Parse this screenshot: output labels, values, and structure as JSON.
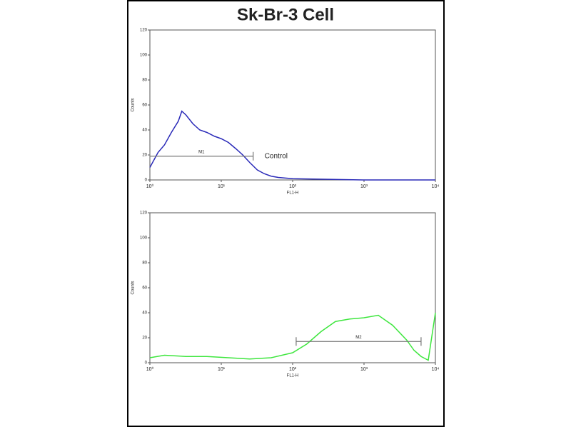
{
  "title": "Sk-Br-3 Cell",
  "chart_data": [
    {
      "type": "line",
      "xlabel": "FL1-H",
      "ylabel": "Counts",
      "xscale": "log",
      "xlim": [
        1,
        10000
      ],
      "ylim": [
        0,
        120
      ],
      "xticks": [
        {
          "value": 1,
          "label": "10⁰"
        },
        {
          "value": 10,
          "label": "10¹"
        },
        {
          "value": 100,
          "label": "10²"
        },
        {
          "value": 1000,
          "label": "10³"
        },
        {
          "value": 10000,
          "label": "10⁴"
        }
      ],
      "yticks": [
        0,
        20,
        40,
        60,
        80,
        100,
        120
      ],
      "series": [
        {
          "color": "#2a2ab8",
          "x": [
            1,
            1.3,
            1.6,
            2,
            2.5,
            2.8,
            3.2,
            4,
            5,
            6.3,
            8,
            10,
            12.6,
            16,
            20,
            25,
            32,
            40,
            50,
            63,
            100,
            316,
            1000,
            10000
          ],
          "values": [
            10,
            22,
            28,
            38,
            47,
            55,
            52,
            45,
            40,
            38,
            35,
            33,
            30,
            25,
            20,
            14,
            8,
            5,
            3,
            2,
            1,
            0.5,
            0,
            0
          ]
        }
      ],
      "markers": [
        {
          "label": "M1",
          "x": [
            1,
            28
          ],
          "y": 19,
          "note": "Control"
        }
      ]
    },
    {
      "type": "line",
      "xlabel": "FL1-H",
      "ylabel": "Counts",
      "xscale": "log",
      "xlim": [
        1,
        10000
      ],
      "ylim": [
        0,
        120
      ],
      "xticks": [
        {
          "value": 1,
          "label": "10⁰"
        },
        {
          "value": 10,
          "label": "10¹"
        },
        {
          "value": 100,
          "label": "10²"
        },
        {
          "value": 1000,
          "label": "10³"
        },
        {
          "value": 10000,
          "label": "10⁴"
        }
      ],
      "yticks": [
        0,
        20,
        40,
        60,
        80,
        100,
        120
      ],
      "series": [
        {
          "color": "#3ee63e",
          "x": [
            1,
            1.6,
            3.2,
            6.3,
            12.6,
            25,
            50,
            100,
            158,
            251,
            398,
            631,
            1000,
            1585,
            2512,
            3981,
            5012,
            6310,
            7943,
            10000
          ],
          "values": [
            4,
            6,
            5,
            5,
            4,
            3,
            4,
            8,
            15,
            25,
            33,
            35,
            36,
            38,
            30,
            18,
            10,
            5,
            2,
            40
          ]
        }
      ],
      "markers": [
        {
          "label": "M2",
          "x": [
            112,
            6300
          ],
          "y": 17
        }
      ]
    }
  ]
}
